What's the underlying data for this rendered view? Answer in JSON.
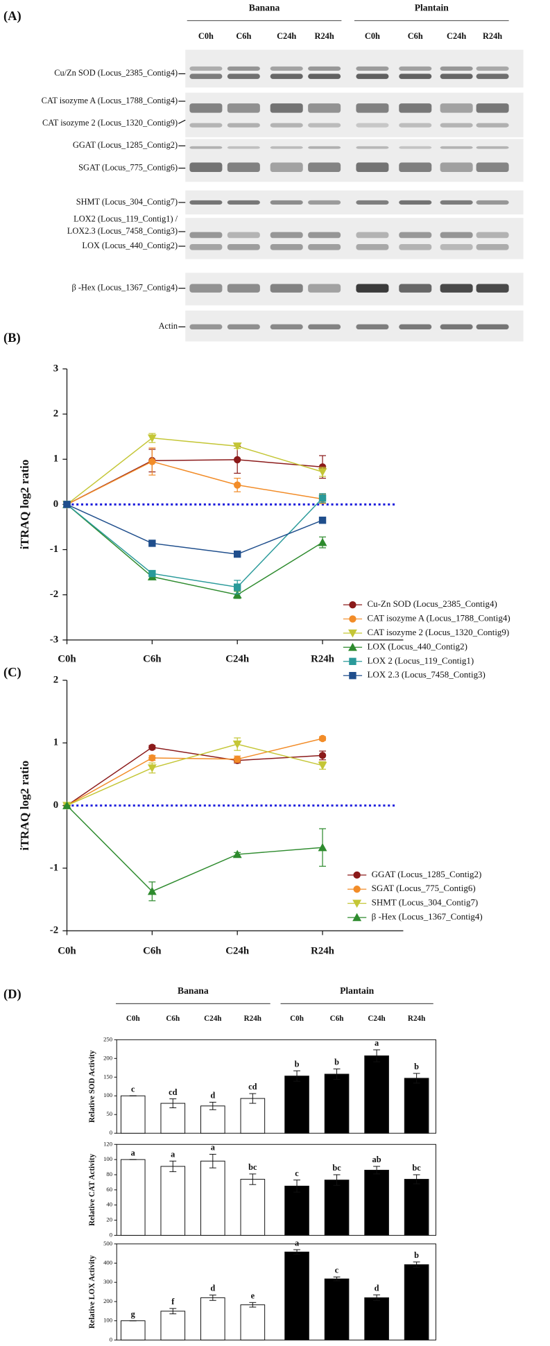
{
  "panel_a": {
    "label": "(A)",
    "groups": [
      "Banana",
      "Plantain"
    ],
    "lanes": [
      "C0h",
      "C6h",
      "C24h",
      "R24h",
      "C0h",
      "C6h",
      "C24h",
      "R24h"
    ],
    "rows": [
      "Cu/Zn SOD (Locus_2385_Contig4)",
      "CAT isozyme A (Locus_1788_Contig4)",
      "CAT isozyme 2 (Locus_1320_Contig9)",
      "GGAT (Locus_1285_Contig2)",
      "SGAT (Locus_775_Contig6)",
      "SHMT (Locus_304_Contig7)",
      "LOX2 (Locus_119_Contig1) /",
      "LOX2.3 (Locus_7458_Contig3)",
      "LOX (Locus_440_Contig2)",
      "β -Hex (Locus_1367_Contig4)",
      "Actin"
    ]
  },
  "chart_data": [
    {
      "type": "line",
      "label": "(B)",
      "ylabel": "iTRAQ log2 ratio",
      "categories": [
        "C0h",
        "C6h",
        "C24h",
        "R24h"
      ],
      "ylim": [
        -3,
        3
      ],
      "yticks": [
        -3,
        -2,
        -1,
        0,
        1,
        2,
        3
      ],
      "zero_line": {
        "value": 0,
        "color": "#2222dd"
      },
      "series": [
        {
          "name": "Cu-Zn SOD (Locus_2385_Contig4)",
          "color": "#8b1a1a",
          "marker": "circle",
          "values": [
            0,
            0.97,
            0.99,
            0.83
          ],
          "errors": [
            0,
            0.25,
            0.3,
            0.25
          ]
        },
        {
          "name": "CAT isozyme A (Locus_1788_Contig4)",
          "color": "#f28c28",
          "marker": "circle",
          "values": [
            0,
            0.95,
            0.43,
            0.12
          ],
          "errors": [
            0,
            0.3,
            0.15,
            0.1
          ]
        },
        {
          "name": "CAT isozyme 2 (Locus_1320_Contig9)",
          "color": "#c4c636",
          "marker": "triangle-down",
          "values": [
            0,
            1.47,
            1.29,
            0.72
          ],
          "errors": [
            0,
            0.1,
            0.05,
            0.1
          ]
        },
        {
          "name": "LOX (Locus_440_Contig2)",
          "color": "#2e8b2e",
          "marker": "triangle-up",
          "values": [
            0,
            -1.6,
            -2.0,
            -0.84
          ],
          "errors": [
            0,
            0.05,
            0.08,
            0.12
          ]
        },
        {
          "name": "LOX 2 (Locus_119_Contig1)",
          "color": "#2a9a9a",
          "marker": "square",
          "values": [
            0,
            -1.53,
            -1.83,
            0.14
          ],
          "errors": [
            0,
            0.05,
            0.15,
            0.1
          ]
        },
        {
          "name": "LOX 2.3 (Locus_7458_Contig3)",
          "color": "#1f4e8c",
          "marker": "square",
          "values": [
            0,
            -0.86,
            -1.1,
            -0.35
          ],
          "errors": [
            0,
            0.04,
            0.03,
            0.03
          ]
        }
      ]
    },
    {
      "type": "line",
      "label": "(C)",
      "ylabel": "iTRAQ log2 ratio",
      "categories": [
        "C0h",
        "C6h",
        "C24h",
        "R24h"
      ],
      "ylim": [
        -2,
        2
      ],
      "yticks": [
        -2,
        -1,
        0,
        1,
        2
      ],
      "zero_line": {
        "value": 0,
        "color": "#2222dd"
      },
      "series": [
        {
          "name": "GGAT (Locus_1285_Contig2)",
          "color": "#8b1a1a",
          "marker": "circle",
          "values": [
            0,
            0.93,
            0.72,
            0.8
          ],
          "errors": [
            0,
            0.03,
            0.04,
            0.07
          ]
        },
        {
          "name": "SGAT (Locus_775_Contig6)",
          "color": "#f28c28",
          "marker": "circle",
          "values": [
            0,
            0.76,
            0.74,
            1.07
          ],
          "errors": [
            0,
            0.04,
            0.05,
            0.03
          ]
        },
        {
          "name": "SHMT (Locus_304_Contig7)",
          "color": "#c4c636",
          "marker": "triangle-down",
          "values": [
            0,
            0.6,
            0.98,
            0.64
          ],
          "errors": [
            0,
            0.08,
            0.1,
            0.06
          ]
        },
        {
          "name": "β -Hex (Locus_1367_Contig4)",
          "color": "#2e8b2e",
          "marker": "triangle-up",
          "values": [
            0,
            -1.37,
            -0.78,
            -0.67
          ],
          "errors": [
            0,
            0.15,
            0.03,
            0.3
          ]
        }
      ]
    },
    {
      "type": "bar",
      "label": "(D)",
      "groups": [
        "Banana",
        "Plantain"
      ],
      "categories": [
        "C0h",
        "C6h",
        "C24h",
        "R24h",
        "C0h",
        "C6h",
        "C24h",
        "R24h"
      ],
      "colors": [
        "#ffffff",
        "#ffffff",
        "#ffffff",
        "#ffffff",
        "#000000",
        "#000000",
        "#000000",
        "#000000"
      ],
      "panels": [
        {
          "ylabel": "Relative SOD Activity",
          "ylim": [
            0,
            250
          ],
          "yticks": [
            0,
            50,
            100,
            150,
            200,
            250
          ],
          "values": [
            100,
            80,
            73,
            93,
            153,
            158,
            207,
            147
          ],
          "errors": [
            0,
            12,
            10,
            13,
            14,
            14,
            16,
            13
          ],
          "annotations": [
            "c",
            "cd",
            "d",
            "cd",
            "b",
            "b",
            "a",
            "b"
          ]
        },
        {
          "ylabel": "Relative CAT Activity",
          "ylim": [
            0,
            120
          ],
          "yticks": [
            0,
            20,
            40,
            60,
            80,
            100,
            120
          ],
          "values": [
            100,
            91,
            98,
            74,
            65,
            73,
            86,
            74
          ],
          "errors": [
            0,
            7,
            9,
            7,
            8,
            7,
            5,
            6
          ],
          "annotations": [
            "a",
            "a",
            "a",
            "bc",
            "c",
            "bc",
            "ab",
            "bc"
          ]
        },
        {
          "ylabel": "Relative LOX Activity",
          "ylim": [
            0,
            500
          ],
          "yticks": [
            0,
            100,
            200,
            300,
            400,
            500
          ],
          "values": [
            100,
            150,
            220,
            183,
            458,
            318,
            220,
            392
          ],
          "errors": [
            0,
            14,
            14,
            12,
            12,
            10,
            15,
            14
          ],
          "annotations": [
            "g",
            "f",
            "d",
            "e",
            "a",
            "c",
            "d",
            "b"
          ]
        }
      ]
    }
  ]
}
